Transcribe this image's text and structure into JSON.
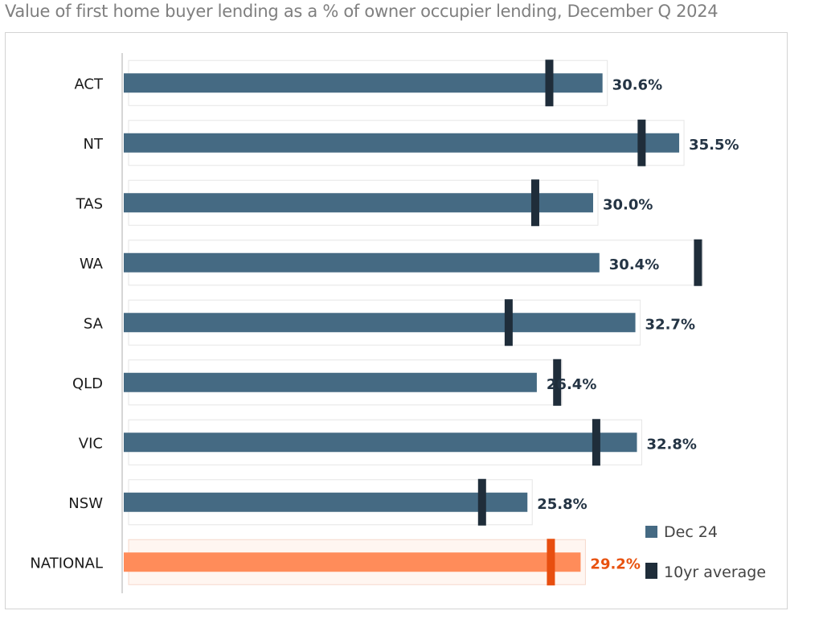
{
  "chart_data": {
    "type": "bar",
    "title": "Value of first home buyer lending as a % of owner occupier lending, December Q 2024",
    "categories": [
      "ACT",
      "NT",
      "TAS",
      "WA",
      "SA",
      "QLD",
      "VIC",
      "NSW",
      "NATIONAL"
    ],
    "series": [
      {
        "name": "Dec 24",
        "values": [
          30.6,
          35.5,
          30.0,
          30.4,
          32.7,
          26.4,
          32.8,
          25.8,
          29.2
        ]
      },
      {
        "name": "10yr average",
        "values": [
          27.2,
          33.1,
          26.3,
          36.7,
          24.6,
          27.7,
          30.2,
          22.9,
          27.3
        ]
      }
    ],
    "value_labels": [
      "30.6%",
      "35.5%",
      "30.0%",
      "30.4%",
      "32.7%",
      "26.4%",
      "32.8%",
      "25.8%",
      "29.2%"
    ],
    "xlim": [
      0,
      45
    ],
    "orientation": "horizontal",
    "highlight_category": "NATIONAL",
    "legend_position": "bottom-right",
    "colors": {
      "bar": "#456a83",
      "bar_highlight": "#ff8c5a",
      "marker": "#1f2d3a",
      "marker_highlight": "#e84e0f",
      "label_highlight": "#e8520f"
    }
  }
}
